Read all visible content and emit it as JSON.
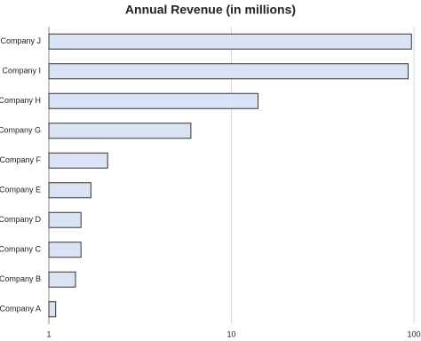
{
  "chart_data": {
    "type": "bar",
    "orientation": "horizontal",
    "title": "Annual Revenue (in millions)",
    "categories": [
      "Company A",
      "Company B",
      "Company C",
      "Company D",
      "Company E",
      "Company F",
      "Company G",
      "Company H",
      "Company I",
      "Company J"
    ],
    "values": [
      1.09,
      1.4,
      1.5,
      1.5,
      1.7,
      2.1,
      6,
      14,
      93,
      97
    ],
    "color": "#dae3f3",
    "xlim": [
      1,
      100
    ],
    "xticks": [
      1,
      10,
      100
    ],
    "log_scale": true,
    "grid": true
  }
}
